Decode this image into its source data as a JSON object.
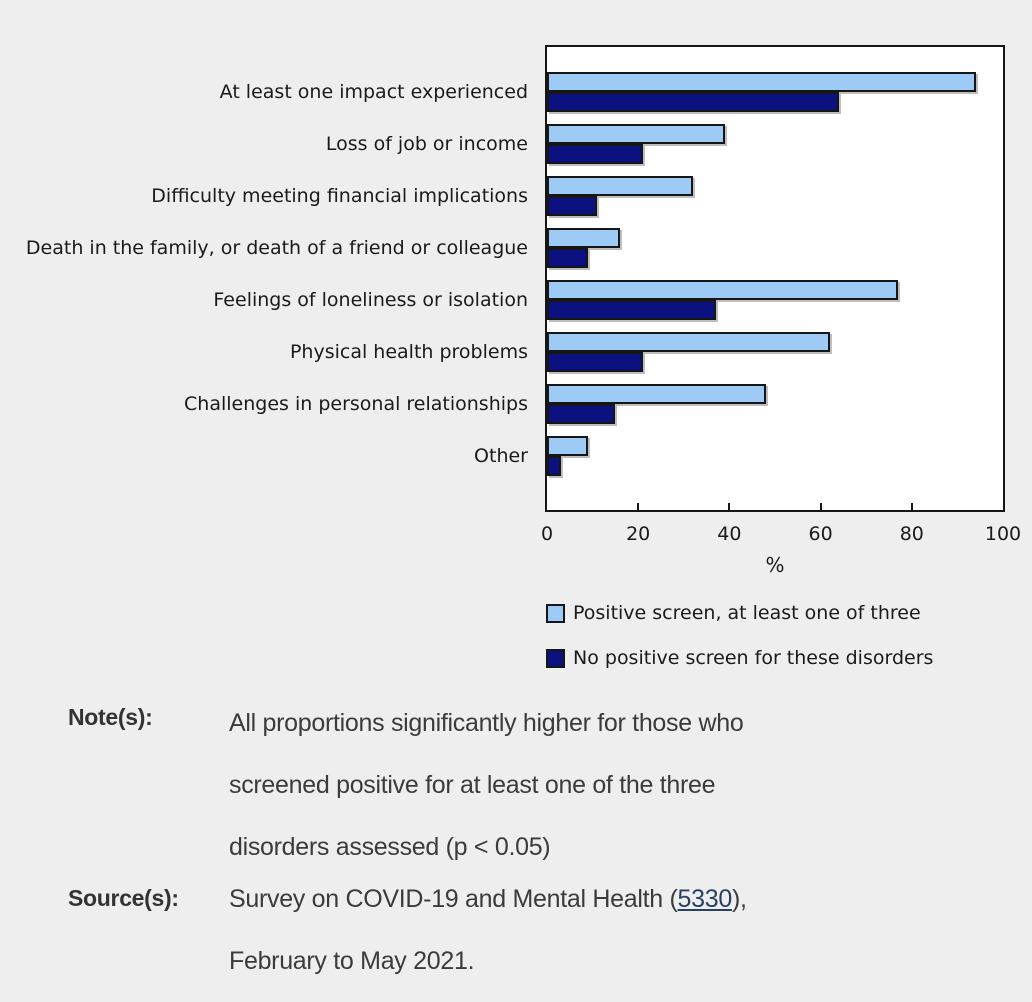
{
  "chart_data": {
    "type": "bar",
    "orientation": "horizontal",
    "title": "",
    "xlabel": "%",
    "xlim": [
      0,
      100
    ],
    "x_ticks": [
      0,
      20,
      40,
      60,
      80,
      100
    ],
    "grid": false,
    "legend_position": "bottom",
    "categories": [
      "At least one impact experienced",
      "Loss of job or income",
      "Difficulty meeting financial implications",
      "Death in the family, or death of a friend or colleague",
      "Feelings of loneliness or isolation",
      "Physical health problems",
      "Challenges in personal relationships",
      "Other"
    ],
    "series": [
      {
        "name": "Positive screen, at least one of three",
        "color": "#9dcbf5",
        "values": [
          94,
          39,
          32,
          16,
          77,
          62,
          48,
          9
        ]
      },
      {
        "name": "No positive screen for these disorders",
        "color": "#0b1280",
        "values": [
          64,
          21,
          11,
          9,
          37,
          21,
          15,
          3
        ]
      }
    ]
  },
  "notes": {
    "label": "Note(s):",
    "lines": [
      "All proportions significantly higher for those who",
      "screened positive for at least one of the three",
      "disorders assessed (p < 0.05)"
    ]
  },
  "source": {
    "label": "Source(s):",
    "prefix": "Survey on COVID-19 and Mental Health (",
    "link": "5330",
    "suffix": "),",
    "line2": "February to May 2021."
  }
}
